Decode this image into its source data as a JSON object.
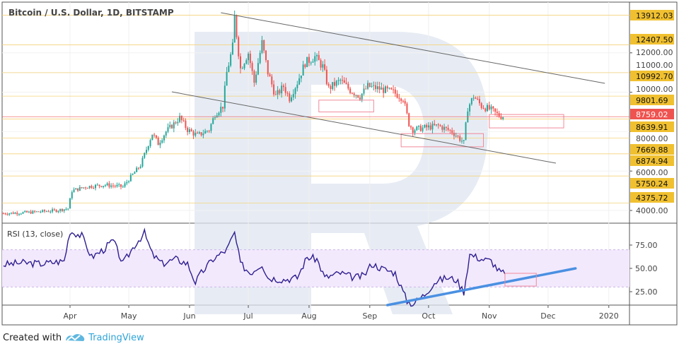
{
  "footer": {
    "created_with": "Created with",
    "brand": "TradingView"
  },
  "chart_data": [
    {
      "type": "candlestick",
      "title": "Bitcoin / U.S. Dollar, 1D, BITSTAMP",
      "x_unit": "day of year 2019",
      "y_scale": "linear",
      "ylim": [
        3700,
        14600
      ],
      "price_axis_ticks": [
        "12000.00",
        "11000.00",
        "10000.00",
        "8000.00",
        "6000.00",
        "4000.00"
      ],
      "level_labels": [
        "13912.03",
        "12407.50",
        "10992.70",
        "9801.69",
        "8639.91",
        "7669.88",
        "6874.94",
        "5750.24",
        "4375.72"
      ],
      "levels": [
        13912.03,
        12407.5,
        10992.7,
        9801.69,
        8639.91,
        7669.88,
        6874.94,
        5750.24,
        4375.72
      ],
      "last_price_label": "8759.02",
      "last_price": 8759.02,
      "close_points": [
        [
          57,
          3850
        ],
        [
          70,
          3900
        ],
        [
          84,
          4000
        ],
        [
          90,
          4100
        ],
        [
          92,
          5000
        ],
        [
          99,
          5200
        ],
        [
          109,
          5300
        ],
        [
          118,
          5200
        ],
        [
          122,
          5700
        ],
        [
          127,
          6300
        ],
        [
          133,
          7900
        ],
        [
          136,
          7400
        ],
        [
          140,
          8000
        ],
        [
          147,
          8700
        ],
        [
          151,
          8100
        ],
        [
          156,
          7800
        ],
        [
          162,
          8100
        ],
        [
          165,
          8900
        ],
        [
          169,
          9300
        ],
        [
          171,
          11000
        ],
        [
          174,
          12300
        ],
        [
          175,
          13800
        ],
        [
          178,
          11200
        ],
        [
          182,
          12000
        ],
        [
          185,
          10500
        ],
        [
          189,
          12500
        ],
        [
          192,
          11000
        ],
        [
          196,
          9800
        ],
        [
          200,
          10300
        ],
        [
          203,
          9700
        ],
        [
          207,
          10500
        ],
        [
          211,
          11500
        ],
        [
          216,
          11800
        ],
        [
          220,
          11300
        ],
        [
          223,
          10200
        ],
        [
          229,
          10600
        ],
        [
          234,
          10100
        ],
        [
          239,
          9800
        ],
        [
          243,
          10300
        ],
        [
          248,
          10200
        ],
        [
          256,
          10000
        ],
        [
          261,
          9700
        ],
        [
          264,
          8400
        ],
        [
          266,
          8100
        ],
        [
          272,
          8200
        ],
        [
          279,
          8300
        ],
        [
          286,
          8000
        ],
        [
          292,
          7450
        ],
        [
          294,
          9200
        ],
        [
          297,
          9800
        ],
        [
          301,
          9300
        ],
        [
          306,
          9100
        ],
        [
          310,
          8800
        ],
        [
          313,
          8759
        ]
      ],
      "channel_upper": [
        [
          168,
          14036
        ],
        [
          364,
          10450
        ]
      ],
      "channel_lower": [
        [
          143,
          10020
        ],
        [
          339,
          6400
        ]
      ],
      "zones": [
        [
          218,
          246,
          9000,
          9600
        ],
        [
          260,
          302,
          7230,
          7900
        ],
        [
          305,
          343,
          8190,
          8870
        ]
      ]
    },
    {
      "type": "line",
      "title": "RSI (13, close)",
      "ylim": [
        0,
        100
      ],
      "band": [
        30,
        70
      ],
      "yticks": [
        "75.00",
        "50.00",
        "25.00"
      ],
      "ytick_values": [
        75,
        50,
        25
      ],
      "points": [
        [
          57,
          54
        ],
        [
          66,
          56
        ],
        [
          77,
          55
        ],
        [
          88,
          58
        ],
        [
          91,
          90
        ],
        [
          97,
          85
        ],
        [
          102,
          62
        ],
        [
          108,
          70
        ],
        [
          113,
          80
        ],
        [
          118,
          55
        ],
        [
          124,
          75
        ],
        [
          129,
          88
        ],
        [
          133,
          65
        ],
        [
          138,
          55
        ],
        [
          145,
          60
        ],
        [
          151,
          55
        ],
        [
          155,
          35
        ],
        [
          158,
          45
        ],
        [
          164,
          60
        ],
        [
          171,
          70
        ],
        [
          175,
          88
        ],
        [
          178,
          55
        ],
        [
          183,
          45
        ],
        [
          189,
          55
        ],
        [
          192,
          40
        ],
        [
          200,
          38
        ],
        [
          207,
          40
        ],
        [
          212,
          62
        ],
        [
          217,
          60
        ],
        [
          221,
          40
        ],
        [
          229,
          45
        ],
        [
          236,
          40
        ],
        [
          241,
          42
        ],
        [
          245,
          55
        ],
        [
          250,
          50
        ],
        [
          257,
          45
        ],
        [
          263,
          15
        ],
        [
          266,
          12
        ],
        [
          272,
          22
        ],
        [
          277,
          35
        ],
        [
          283,
          40
        ],
        [
          288,
          38
        ],
        [
          292,
          25
        ],
        [
          295,
          65
        ],
        [
          301,
          60
        ],
        [
          306,
          58
        ],
        [
          310,
          47
        ],
        [
          313,
          44
        ]
      ],
      "trendline": [
        [
          253,
          10.6
        ],
        [
          349,
          50
        ]
      ],
      "zone": [
        313,
        329,
        31,
        44.7
      ]
    }
  ],
  "time_axis": {
    "labels": [
      "Apr",
      "May",
      "Jun",
      "Jul",
      "Aug",
      "Sep",
      "Oct",
      "Nov",
      "Dec",
      "2020"
    ],
    "days": [
      91,
      121,
      152,
      182,
      213,
      244,
      274,
      305,
      335,
      366
    ]
  }
}
